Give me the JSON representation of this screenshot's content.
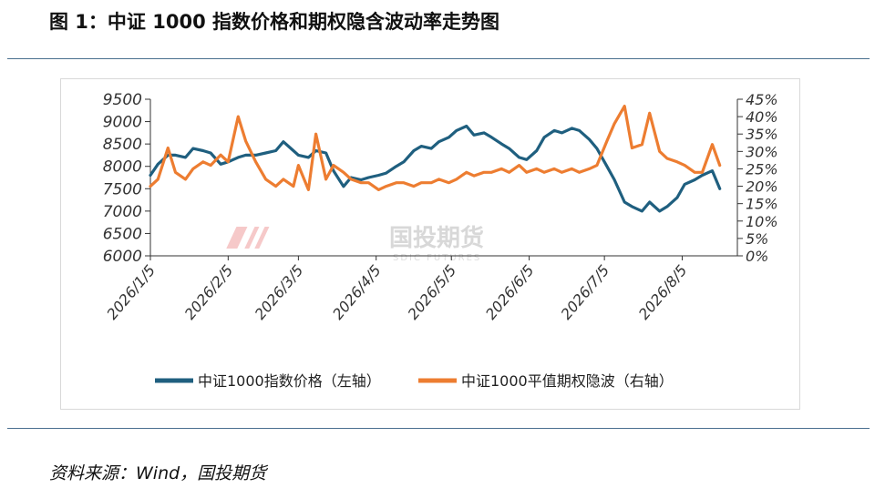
{
  "title": "图 1：中证 1000 指数价格和期权隐含波动率走势图",
  "source": "资料来源：Wind，国投期货",
  "watermark": {
    "text": "国投期货",
    "subtext": "SDIC FUTURES"
  },
  "colors": {
    "price": "#1f5f7f",
    "iv": "#ed7d31",
    "rule": "#4a6f8f",
    "axis": "#333333"
  },
  "chart_data": {
    "type": "line",
    "x_ticks": [
      "2026/1/5",
      "2026/2/5",
      "2026/3/5",
      "2026/4/5",
      "2026/5/5",
      "2026/6/5",
      "2026/7/5",
      "2026/8/5"
    ],
    "y_left": {
      "ylim": [
        6000,
        9500
      ],
      "ticks": [
        "6000",
        "6500",
        "7000",
        "7500",
        "8000",
        "8500",
        "9000",
        "9500"
      ]
    },
    "y_right": {
      "ylim": [
        0,
        45
      ],
      "ticks": [
        "0%",
        "5%",
        "10%",
        "15%",
        "20%",
        "25%",
        "30%",
        "35%",
        "40%",
        "45%"
      ]
    },
    "grid": false,
    "legend_position": "bottom",
    "series": [
      {
        "name": "中证1000指数价格（左轴）",
        "axis": "left",
        "x": [
          "2026-01-05",
          "2026-01-08",
          "2026-01-12",
          "2026-01-15",
          "2026-01-19",
          "2026-01-22",
          "2026-01-26",
          "2026-01-29",
          "2026-02-02",
          "2026-02-05",
          "2026-02-09",
          "2026-02-12",
          "2026-02-16",
          "2026-02-20",
          "2026-02-24",
          "2026-02-27",
          "2026-03-03",
          "2026-03-05",
          "2026-03-09",
          "2026-03-12",
          "2026-03-16",
          "2026-03-19",
          "2026-03-23",
          "2026-03-26",
          "2026-03-30",
          "2026-04-02",
          "2026-04-06",
          "2026-04-09",
          "2026-04-13",
          "2026-04-16",
          "2026-04-20",
          "2026-04-23",
          "2026-04-27",
          "2026-04-30",
          "2026-05-04",
          "2026-05-07",
          "2026-05-11",
          "2026-05-14",
          "2026-05-18",
          "2026-05-21",
          "2026-05-25",
          "2026-05-28",
          "2026-06-01",
          "2026-06-04",
          "2026-06-08",
          "2026-06-11",
          "2026-06-15",
          "2026-06-18",
          "2026-06-22",
          "2026-06-25",
          "2026-06-29",
          "2026-07-02",
          "2026-07-06",
          "2026-07-09",
          "2026-07-13",
          "2026-07-16",
          "2026-07-20",
          "2026-07-23",
          "2026-07-27",
          "2026-07-30",
          "2026-08-03",
          "2026-08-06",
          "2026-08-10",
          "2026-08-13",
          "2026-08-17",
          "2026-08-20"
        ],
        "values": [
          7800,
          8050,
          8250,
          8250,
          8200,
          8400,
          8350,
          8300,
          8050,
          8100,
          8200,
          8250,
          8250,
          8300,
          8350,
          8550,
          8350,
          8250,
          8200,
          8350,
          8300,
          7900,
          7550,
          7750,
          7700,
          7750,
          7800,
          7850,
          8000,
          8100,
          8350,
          8450,
          8400,
          8550,
          8650,
          8800,
          8900,
          8700,
          8750,
          8650,
          8500,
          8400,
          8200,
          8150,
          8350,
          8650,
          8800,
          8750,
          8850,
          8800,
          8600,
          8400,
          8000,
          7700,
          7200,
          7100,
          7000,
          7200,
          7000,
          7100,
          7300,
          7600,
          7700,
          7800,
          7900,
          7500
        ]
      },
      {
        "name": "中证1000平值期权隐波（右轴）",
        "axis": "right",
        "x": [
          "2026-01-05",
          "2026-01-08",
          "2026-01-12",
          "2026-01-15",
          "2026-01-19",
          "2026-01-22",
          "2026-01-26",
          "2026-01-29",
          "2026-02-02",
          "2026-02-05",
          "2026-02-09",
          "2026-02-12",
          "2026-02-16",
          "2026-02-20",
          "2026-02-24",
          "2026-02-27",
          "2026-03-03",
          "2026-03-05",
          "2026-03-09",
          "2026-03-12",
          "2026-03-16",
          "2026-03-19",
          "2026-03-23",
          "2026-03-26",
          "2026-03-30",
          "2026-04-02",
          "2026-04-06",
          "2026-04-09",
          "2026-04-13",
          "2026-04-16",
          "2026-04-20",
          "2026-04-23",
          "2026-04-27",
          "2026-04-30",
          "2026-05-04",
          "2026-05-07",
          "2026-05-11",
          "2026-05-14",
          "2026-05-18",
          "2026-05-21",
          "2026-05-25",
          "2026-05-28",
          "2026-06-01",
          "2026-06-04",
          "2026-06-08",
          "2026-06-11",
          "2026-06-15",
          "2026-06-18",
          "2026-06-22",
          "2026-06-25",
          "2026-06-29",
          "2026-07-02",
          "2026-07-06",
          "2026-07-09",
          "2026-07-13",
          "2026-07-16",
          "2026-07-20",
          "2026-07-23",
          "2026-07-27",
          "2026-07-30",
          "2026-08-03",
          "2026-08-06",
          "2026-08-10",
          "2026-08-13",
          "2026-08-17",
          "2026-08-20"
        ],
        "values": [
          20,
          22,
          31,
          24,
          22,
          25,
          27,
          26,
          29,
          27,
          40,
          33,
          27,
          22,
          20,
          22,
          20,
          26,
          19,
          35,
          22,
          26,
          24,
          22,
          21,
          21,
          19,
          20,
          21,
          21,
          20,
          21,
          21,
          22,
          21,
          22,
          24,
          23,
          24,
          24,
          25,
          24,
          26,
          24,
          25,
          24,
          25,
          24,
          25,
          24,
          25,
          26,
          33,
          38,
          43,
          31,
          32,
          41,
          30,
          28,
          27,
          26,
          24,
          24,
          32,
          26
        ]
      }
    ]
  }
}
